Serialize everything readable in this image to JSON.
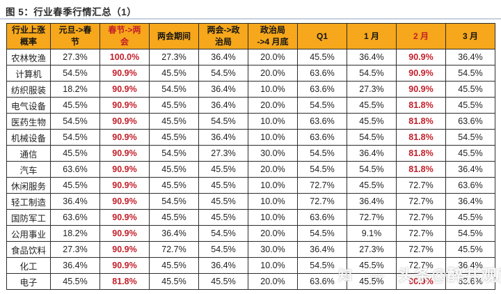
{
  "figure": {
    "caption": "图 5：行业春季行情汇总（1）"
  },
  "colors": {
    "header_bg": "#F6A71B",
    "highlight_red": "#C31E28",
    "border": "#2B2B2B",
    "title_divider": "#C7D0DB"
  },
  "watermark": {
    "prefix": "知 —",
    "text": "头条@醉井观商"
  },
  "chart_data": {
    "type": "table",
    "title": "行业春季行情汇总（1）",
    "columns": [
      {
        "label": "行业上涨\n概率",
        "red": false
      },
      {
        "label": "元旦->春\n节",
        "red": false
      },
      {
        "label": "春节->两\n会",
        "red": true
      },
      {
        "label": "两会期间",
        "red": false
      },
      {
        "label": "两会->政\n治局",
        "red": false
      },
      {
        "label": "政治局\n->4 月底",
        "red": false
      },
      {
        "label": "Q1",
        "red": false
      },
      {
        "label": "1 月",
        "red": false
      },
      {
        "label": "2 月",
        "red": true
      },
      {
        "label": "3 月",
        "red": false
      }
    ],
    "rows": [
      {
        "label": "农林牧渔",
        "values": [
          "27.3%",
          "100.0%",
          "27.3%",
          "36.4%",
          "20.0%",
          "45.5%",
          "36.4%",
          "90.9%",
          "36.4%"
        ],
        "red_cols": [
          1,
          7
        ]
      },
      {
        "label": "计算机",
        "values": [
          "54.5%",
          "90.9%",
          "45.5%",
          "54.5%",
          "20.0%",
          "63.6%",
          "54.5%",
          "90.9%",
          "54.5%"
        ],
        "red_cols": [
          1,
          7
        ]
      },
      {
        "label": "纺织服装",
        "values": [
          "18.2%",
          "90.9%",
          "54.5%",
          "36.4%",
          "10.0%",
          "63.6%",
          "27.3%",
          "90.9%",
          "45.5%"
        ],
        "red_cols": [
          1,
          7
        ]
      },
      {
        "label": "电气设备",
        "values": [
          "45.5%",
          "90.9%",
          "45.5%",
          "36.4%",
          "20.0%",
          "54.5%",
          "45.5%",
          "81.8%",
          "45.5%"
        ],
        "red_cols": [
          1,
          7
        ]
      },
      {
        "label": "医药生物",
        "values": [
          "54.5%",
          "90.9%",
          "45.5%",
          "54.5%",
          "10.0%",
          "63.6%",
          "45.5%",
          "81.8%",
          "63.6%"
        ],
        "red_cols": [
          1,
          7
        ]
      },
      {
        "label": "机械设备",
        "values": [
          "54.5%",
          "90.9%",
          "45.5%",
          "36.4%",
          "10.0%",
          "63.6%",
          "54.5%",
          "81.8%",
          "54.5%"
        ],
        "red_cols": [
          1,
          7
        ]
      },
      {
        "label": "通信",
        "values": [
          "45.5%",
          "90.9%",
          "54.5%",
          "27.3%",
          "30.0%",
          "54.5%",
          "36.4%",
          "81.8%",
          "45.5%"
        ],
        "red_cols": [
          1,
          7
        ]
      },
      {
        "label": "汽车",
        "values": [
          "63.6%",
          "90.9%",
          "45.5%",
          "45.5%",
          "20.0%",
          "54.5%",
          "54.5%",
          "81.8%",
          "36.4%"
        ],
        "red_cols": [
          1,
          7
        ]
      },
      {
        "label": "休闲服务",
        "values": [
          "45.5%",
          "90.9%",
          "45.5%",
          "45.5%",
          "10.0%",
          "72.7%",
          "45.5%",
          "72.7%",
          "63.6%"
        ],
        "red_cols": [
          1
        ]
      },
      {
        "label": "轻工制造",
        "values": [
          "36.4%",
          "90.9%",
          "54.5%",
          "45.5%",
          "10.0%",
          "72.7%",
          "36.4%",
          "72.7%",
          "36.4%"
        ],
        "red_cols": [
          1
        ]
      },
      {
        "label": "国防军工",
        "values": [
          "63.6%",
          "90.9%",
          "45.5%",
          "45.5%",
          "10.0%",
          "63.6%",
          "72.7%",
          "72.7%",
          "45.5%"
        ],
        "red_cols": [
          1
        ]
      },
      {
        "label": "公用事业",
        "values": [
          "18.2%",
          "90.9%",
          "36.4%",
          "54.5%",
          "20.0%",
          "54.5%",
          "9.1%",
          "72.7%",
          "54.5%"
        ],
        "red_cols": [
          1
        ]
      },
      {
        "label": "食品饮料",
        "values": [
          "27.3%",
          "90.9%",
          "72.7%",
          "54.5%",
          "30.0%",
          "36.4%",
          "27.3%",
          "72.7%",
          "45.5%"
        ],
        "red_cols": [
          1
        ]
      },
      {
        "label": "化工",
        "values": [
          "36.4%",
          "90.9%",
          "45.5%",
          "36.4%",
          "10.0%",
          "54.5%",
          "45.5%",
          "72.7%",
          "36.4%"
        ],
        "red_cols": [
          1
        ]
      },
      {
        "label": "电子",
        "values": [
          "45.5%",
          "81.8%",
          "45.5%",
          "45.5%",
          "20.0%",
          "63.6%",
          "45.5%",
          "90.9%",
          "63.6%"
        ],
        "red_cols": [
          1,
          7
        ]
      }
    ]
  }
}
